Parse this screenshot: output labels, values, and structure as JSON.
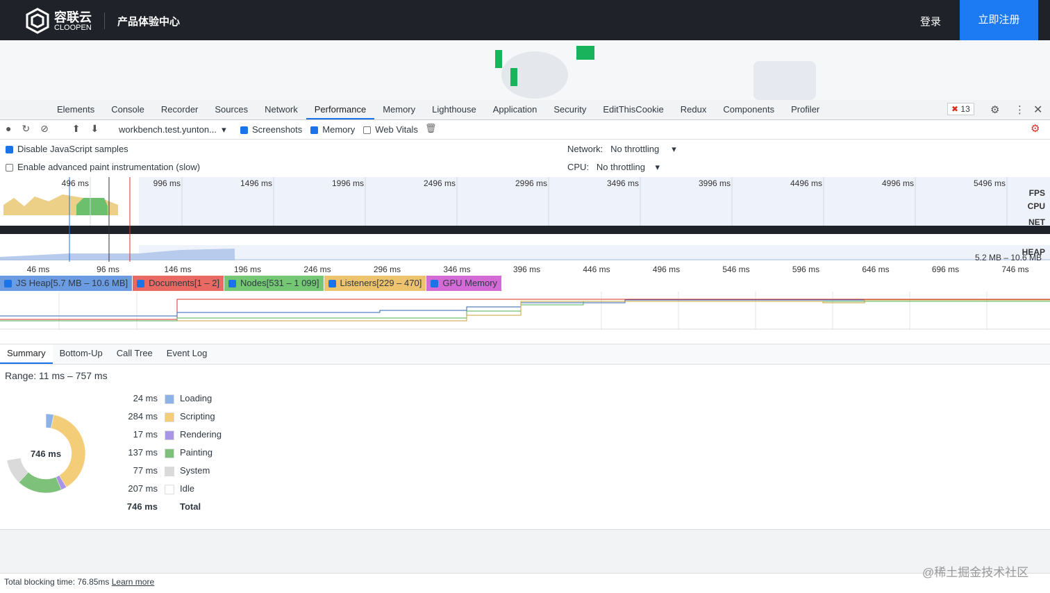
{
  "header": {
    "logo_cn": "容联云",
    "logo_en": "CLOOPEN",
    "product": "产品体验中心",
    "login": "登录",
    "register": "立即注册"
  },
  "devtools": {
    "tabs": [
      "Elements",
      "Console",
      "Recorder",
      "Sources",
      "Network",
      "Performance",
      "Memory",
      "Lighthouse",
      "Application",
      "Security",
      "EditThisCookie",
      "Redux",
      "Components",
      "Profiler"
    ],
    "active_tab": 5,
    "error_count": "13"
  },
  "toolbar": {
    "url": "workbench.test.yunton...",
    "checks": [
      {
        "label": "Screenshots",
        "checked": true
      },
      {
        "label": "Memory",
        "checked": true
      },
      {
        "label": "Web Vitals",
        "checked": false
      }
    ]
  },
  "options": {
    "checks": [
      {
        "label": "Disable JavaScript samples",
        "checked": true
      },
      {
        "label": "Enable advanced paint instrumentation (slow)",
        "checked": false
      }
    ],
    "network_label": "Network:",
    "network_value": "No throttling",
    "cpu_label": "CPU:",
    "cpu_value": "No throttling"
  },
  "overview": {
    "ticks": [
      "496 ms",
      "996 ms",
      "1496 ms",
      "1996 ms",
      "2496 ms",
      "2996 ms",
      "3496 ms",
      "3996 ms",
      "4496 ms",
      "4996 ms",
      "5496 ms"
    ],
    "tracks": [
      "FPS",
      "CPU",
      "NET",
      "HEAP"
    ],
    "heap_range": "5.2 MB – 10.6 MB"
  },
  "timeline": {
    "ticks": [
      "46 ms",
      "96 ms",
      "146 ms",
      "196 ms",
      "246 ms",
      "296 ms",
      "346 ms",
      "396 ms",
      "446 ms",
      "496 ms",
      "546 ms",
      "596 ms",
      "646 ms",
      "696 ms",
      "746 ms"
    ]
  },
  "counters": [
    {
      "label": "JS Heap[5.7 MB – 10.6 MB]",
      "color": "#6b9be0"
    },
    {
      "label": "Documents[1 – 2]",
      "color": "#e86a62"
    },
    {
      "label": "Nodes[531 – 1 099]",
      "color": "#74c874"
    },
    {
      "label": "Listeners[229 – 470]",
      "color": "#eec36e"
    },
    {
      "label": "GPU Memory",
      "color": "#d46ad6"
    }
  ],
  "bottom_tabs": [
    "Summary",
    "Bottom-Up",
    "Call Tree",
    "Event Log"
  ],
  "summary": {
    "range": "Range: 11 ms – 757 ms",
    "items": [
      {
        "value": 24,
        "value_label": "24 ms",
        "name": "Loading",
        "color": "#8cb2e8"
      },
      {
        "value": 284,
        "value_label": "284 ms",
        "name": "Scripting",
        "color": "#f4cd78"
      },
      {
        "value": 17,
        "value_label": "17 ms",
        "name": "Rendering",
        "color": "#a994e6"
      },
      {
        "value": 137,
        "value_label": "137 ms",
        "name": "Painting",
        "color": "#7ec17a"
      },
      {
        "value": 77,
        "value_label": "77 ms",
        "name": "System",
        "color": "#dadada"
      },
      {
        "value": 207,
        "value_label": "207 ms",
        "name": "Idle",
        "color": "#ffffff"
      }
    ],
    "total": {
      "value": 746,
      "value_label": "746 ms",
      "name": "Total"
    }
  },
  "footer": {
    "text": "Total blocking time: 76.85ms",
    "link": "Learn more"
  },
  "watermark": "@稀土掘金技术社区"
}
